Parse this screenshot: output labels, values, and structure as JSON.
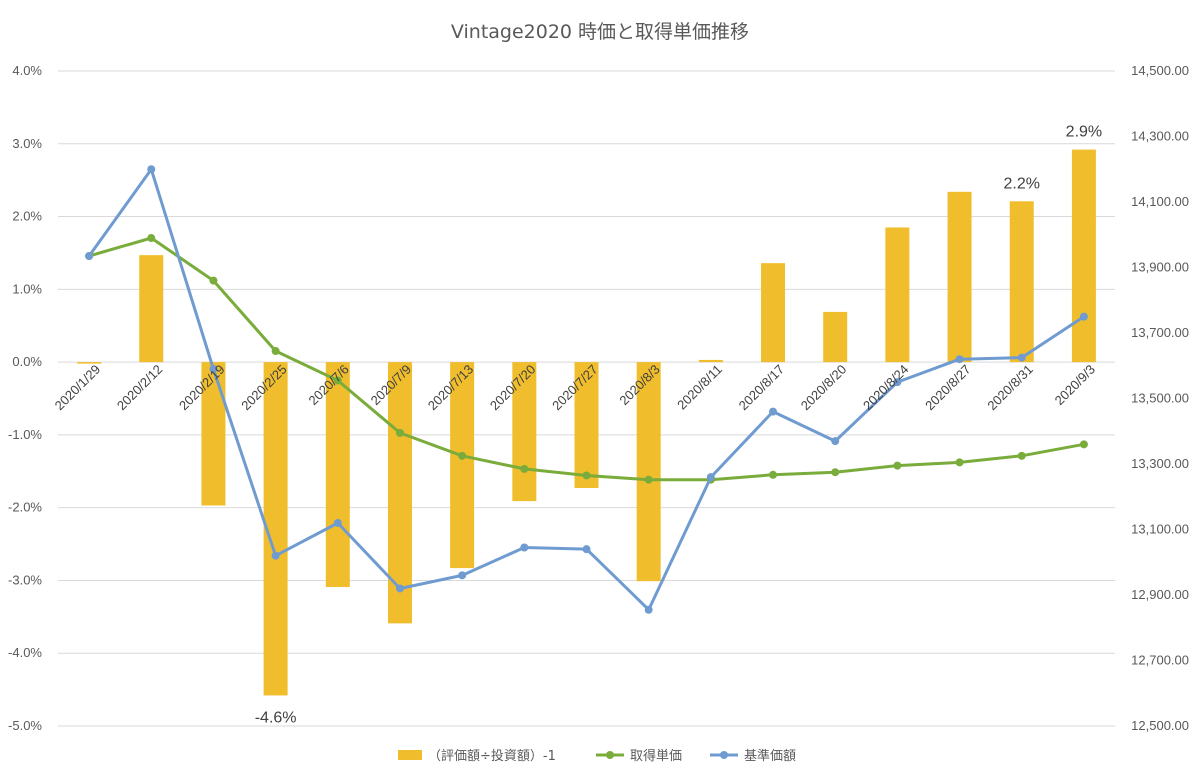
{
  "chart_data": {
    "type": "bar+line",
    "title": "Vintage2020 時価と取得単価推移",
    "categories": [
      "2020/1/29",
      "2020/2/12",
      "2020/2/19",
      "2020/2/25",
      "2020/7/6",
      "2020/7/9",
      "2020/7/13",
      "2020/7/20",
      "2020/7/27",
      "2020/8/3",
      "2020/8/11",
      "2020/8/17",
      "2020/8/20",
      "2020/8/24",
      "2020/8/27",
      "2020/8/31",
      "2020/9/3"
    ],
    "series": [
      {
        "name": "（評価額÷投資額）-1",
        "type": "bar",
        "axis": "left",
        "color": "#F0BE2C",
        "values": [
          -0.02,
          1.47,
          -1.97,
          -4.58,
          -3.09,
          -3.59,
          -2.83,
          -1.91,
          -1.73,
          -3.01,
          0.03,
          1.36,
          0.69,
          1.85,
          2.34,
          2.21,
          2.92
        ]
      },
      {
        "name": "取得単価",
        "type": "line",
        "axis": "right",
        "color": "#7AAC3C",
        "values": [
          13935,
          13990,
          13860,
          13645,
          13555,
          13395,
          13325,
          13285,
          13265,
          13252,
          13252,
          13267,
          13275,
          13295,
          13305,
          13325,
          13360
        ]
      },
      {
        "name": "基準価額",
        "type": "line",
        "axis": "right",
        "color": "#6F9BD1",
        "values": [
          13935,
          14200,
          13590,
          13020,
          13120,
          12920,
          12960,
          13045,
          13040,
          12855,
          13260,
          13460,
          13370,
          13550,
          13620,
          13625,
          13750
        ]
      }
    ],
    "y_left": {
      "min": -5.0,
      "max": 4.0,
      "step": 1.0,
      "tick_labels": [
        "-5.0%",
        "-4.0%",
        "-3.0%",
        "-2.0%",
        "-1.0%",
        "0.0%",
        "1.0%",
        "2.0%",
        "3.0%",
        "4.0%"
      ]
    },
    "y_right": {
      "min": 12500,
      "max": 14500,
      "step": 200,
      "tick_labels": [
        "12,500.00",
        "12,700.00",
        "12,900.00",
        "13,100.00",
        "13,300.00",
        "13,500.00",
        "13,700.00",
        "13,900.00",
        "14,100.00",
        "14,300.00",
        "14,500.00"
      ]
    },
    "data_labels": [
      {
        "index": 3,
        "text": "-4.6%"
      },
      {
        "index": 15,
        "text": "2.2%"
      },
      {
        "index": 16,
        "text": "2.9%"
      }
    ],
    "grid": true,
    "legend": "bottom"
  }
}
